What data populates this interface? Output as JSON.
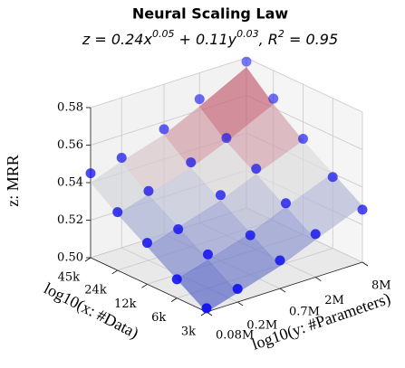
{
  "chart_data": {
    "type": "surface3d",
    "title": "Neural Scaling Law",
    "subtitle_parts": [
      {
        "text": "z = 0.24x"
      },
      {
        "sup": "0.05"
      },
      {
        "text": " + 0.11y"
      },
      {
        "sup": "0.03"
      },
      {
        "text": ",  R"
      },
      {
        "sup": "2"
      },
      {
        "text": " = 0.95"
      }
    ],
    "xlabel": "log10(x: #Data)",
    "ylabel": "log10(y: #Parameters)",
    "zlabel": "z: MRR",
    "xlog": true,
    "ylog": true,
    "xlim": [
      3000,
      45000
    ],
    "ylim": [
      80000,
      8000000
    ],
    "zlim": [
      0.5,
      0.58
    ],
    "xticks": [
      {
        "value": 3000,
        "label": "3k"
      },
      {
        "value": 6000,
        "label": "6k"
      },
      {
        "value": 12000,
        "label": "12k"
      },
      {
        "value": 24000,
        "label": "24k"
      },
      {
        "value": 45000,
        "label": "45k"
      }
    ],
    "yticks": [
      {
        "value": 80000,
        "label": "0.08M"
      },
      {
        "value": 200000,
        "label": "0.2M"
      },
      {
        "value": 700000,
        "label": "0.7M"
      },
      {
        "value": 2000000,
        "label": "2M"
      },
      {
        "value": 8000000,
        "label": "8M"
      }
    ],
    "zticks": [
      {
        "value": 0.5,
        "label": "0.50"
      },
      0.52,
      0.54,
      0.56,
      0.58
    ],
    "grid": true,
    "grid_x": [
      3000,
      6000,
      12000,
      24000,
      45000
    ],
    "grid_y": [
      80000,
      200000,
      700000,
      2000000,
      8000000
    ],
    "surface_z": [
      [
        0.5,
        0.505,
        0.512,
        0.52,
        0.53
      ],
      [
        0.51,
        0.515,
        0.522,
        0.53,
        0.54
      ],
      [
        0.52,
        0.525,
        0.532,
        0.54,
        0.55
      ],
      [
        0.53,
        0.535,
        0.542,
        0.55,
        0.562
      ],
      [
        0.54,
        0.546,
        0.553,
        0.562,
        0.575
      ]
    ],
    "point_color": "#1010ee",
    "points": {
      "x": [
        3000,
        3000,
        3000,
        3000,
        3000,
        6000,
        6000,
        6000,
        6000,
        6000,
        12000,
        12000,
        12000,
        12000,
        12000,
        24000,
        24000,
        24000,
        24000,
        24000,
        45000,
        45000,
        45000,
        45000,
        45000
      ],
      "y": [
        80000,
        200000,
        700000,
        2000000,
        8000000,
        80000,
        200000,
        700000,
        2000000,
        8000000,
        80000,
        200000,
        700000,
        2000000,
        8000000,
        80000,
        200000,
        700000,
        2000000,
        8000000,
        80000,
        200000,
        700000,
        2000000,
        8000000
      ],
      "z": [
        0.502,
        0.507,
        0.515,
        0.523,
        0.528,
        0.51,
        0.518,
        0.521,
        0.532,
        0.538,
        0.522,
        0.524,
        0.535,
        0.543,
        0.551,
        0.531,
        0.537,
        0.545,
        0.552,
        0.565,
        0.545,
        0.548,
        0.556,
        0.566,
        0.578
      ]
    }
  }
}
